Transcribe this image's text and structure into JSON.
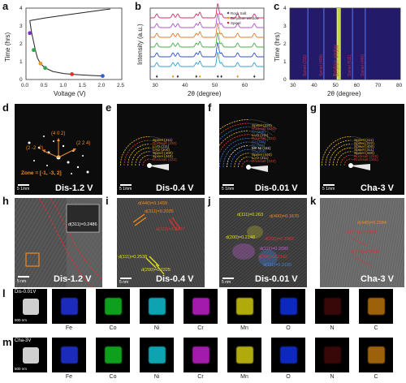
{
  "panels": {
    "a": {
      "label": "a"
    },
    "b": {
      "label": "b"
    },
    "c": {
      "label": "c"
    },
    "d": {
      "label": "d",
      "caption": "Dis-1.2 V",
      "zone": "Zone = [-1, -3, 2]",
      "spots": [
        "(4 0 2)",
        "(2 -2 -2)",
        "(2 2 4)"
      ],
      "scale": "5 1/nm"
    },
    "e": {
      "label": "e",
      "caption": "Dis-0.4 V",
      "scale": "5 1/nm",
      "rings": [
        [
          "Rocksalt (222)",
          "#e8402a"
        ],
        [
          "Spinel (440)",
          "#f0c020"
        ],
        [
          "Spinel (400)",
          "#f0c020"
        ],
        [
          "Li₂O (200)",
          "#f0c020"
        ],
        [
          "Li₂O (111)",
          "#f0c020"
        ],
        [
          "Rocksalt (220)",
          "#e8402a"
        ],
        [
          "Spinel (311)",
          "#f0c020"
        ]
      ]
    },
    "f": {
      "label": "f",
      "caption": "Dis-0.01 V",
      "scale": "5 1/nm",
      "rings": [
        [
          "Rocksalt (222)",
          "#e8402a"
        ],
        [
          "Li₂O (311)",
          "#f0c020"
        ],
        [
          "Spinel (440)",
          "#f0c020"
        ],
        [
          "Cu (200)",
          "#3a7bd5"
        ],
        [
          "Mn Ni (111)",
          "#f0f0f0"
        ],
        [
          "Cr (111)",
          "#3a7bd5"
        ],
        [
          "Co (111)",
          "#3a7bd5"
        ],
        [
          "Rocksalt (222)",
          "#e8402a"
        ],
        [
          "Li₂O (111)",
          "#f0c020"
        ],
        [
          "Cr (200)",
          "#3a7bd5"
        ],
        [
          "Rocksalt (220)",
          "#e8402a"
        ],
        [
          "Spinel (220)",
          "#f0c020"
        ]
      ]
    },
    "g": {
      "label": "g",
      "caption": "Cha-3 V",
      "scale": "5 1/nm",
      "rings": [
        [
          "Rocksalt (331)",
          "#e8402a"
        ],
        [
          "Rocksalt (222)",
          "#e8402a"
        ],
        [
          "Spinel (440)",
          "#f0c020"
        ],
        [
          "Spinel (311)",
          "#f0c020"
        ],
        [
          "Spinel (400)",
          "#f0c020"
        ],
        [
          "Spinel (222)",
          "#f0c020"
        ],
        [
          "Spinel (111)",
          "#f0c020"
        ]
      ]
    },
    "h": {
      "label": "h",
      "caption": "Dis-1.2 V",
      "dspacing": "d(311)=0.2486",
      "scale": "5 nm"
    },
    "i": {
      "label": "i",
      "caption": "Dis-0.4 V",
      "scale": "5 nm",
      "annots": [
        "d(440)=0.1459",
        "d(311)=0.2035",
        "d(311)=0.2467",
        "d(111)=0.2538",
        "d(200)=0.2325"
      ]
    },
    "j": {
      "label": "j",
      "caption": "Dis-0.01 V",
      "scale": "5 nm",
      "annots": [
        "d(111)=0.263",
        "d(400)=0.1670",
        "d(200)=0.2148",
        "d(200)=0.2083",
        "d(111)=0.2090",
        "d(200)=0.2142",
        "d(111)=0.2165"
      ]
    },
    "k": {
      "label": "k",
      "caption": "Cha-3 V",
      "scale": "5 nm",
      "annots": [
        "d(440)=0.2084",
        "d(311)=0.2529",
        "d(111)=0.2548"
      ]
    },
    "l": {
      "label": "l",
      "title": "Dis-0.01V",
      "scale": "500 nm"
    },
    "m": {
      "label": "m",
      "title": "Cha-3V",
      "scale": "500 nm"
    }
  },
  "eds_elements": [
    {
      "name": "Fe",
      "color": "#2233dd"
    },
    {
      "name": "Co",
      "color": "#11bb22"
    },
    {
      "name": "Ni",
      "color": "#11c0d0"
    },
    {
      "name": "Cr",
      "color": "#c020c8"
    },
    {
      "name": "Mn",
      "color": "#d0c810"
    },
    {
      "name": "O",
      "color": "#1030e0"
    },
    {
      "name": "N",
      "color": "#a01818"
    },
    {
      "name": "C",
      "color": "#e08a10"
    }
  ],
  "chart_data": [
    {
      "panel": "a",
      "type": "line",
      "xlabel": "Voltage (V)",
      "ylabel": "Time (hrs)",
      "xlim": [
        0,
        2.5
      ],
      "ylim": [
        0,
        4
      ],
      "xticks": [
        "0.0",
        "0.5",
        "1.0",
        "1.5",
        "2.0",
        "2.5"
      ],
      "yticks": [
        "0",
        "1",
        "2",
        "3",
        "4"
      ],
      "series": [
        {
          "x": [
            0.1,
            0.12,
            0.15,
            0.2,
            0.25,
            0.3,
            0.35,
            0.4,
            0.5,
            0.7,
            1.0,
            1.3,
            1.6,
            2.0
          ],
          "y": [
            3.3,
            3.0,
            2.6,
            2.1,
            1.6,
            1.2,
            1.0,
            0.85,
            0.65,
            0.45,
            0.33,
            0.28,
            0.24,
            0.2
          ]
        },
        {
          "x": [
            0.1,
            0.5,
            1.0,
            1.5,
            2.0,
            2.2
          ],
          "y": [
            3.3,
            3.45,
            3.6,
            3.75,
            3.9,
            3.95
          ]
        }
      ],
      "markers": [
        {
          "x": 0.1,
          "y": 2.6,
          "color": "#7b2fbe"
        },
        {
          "x": 0.2,
          "y": 1.65,
          "color": "#2fa84f"
        },
        {
          "x": 0.38,
          "y": 0.9,
          "color": "#e69a20"
        },
        {
          "x": 0.5,
          "y": 0.65,
          "color": "#2fa84f"
        },
        {
          "x": 1.2,
          "y": 0.3,
          "color": "#e03030"
        },
        {
          "x": 2.0,
          "y": 0.2,
          "color": "#2f5fd0"
        }
      ]
    },
    {
      "panel": "b",
      "type": "line",
      "xlabel": "2θ (degree)",
      "ylabel": "Intensity (a.u.)",
      "xlim": [
        28,
        66
      ],
      "xticks": [
        "30",
        "40",
        "50",
        "60"
      ],
      "legend": [
        "Rock Salt",
        "Beryllium window",
        "Spinel"
      ],
      "legend_colors": [
        "#555555",
        "#e69a20",
        "#c03030"
      ],
      "series_colors": [
        "#d0306a",
        "#b050d0",
        "#e07830",
        "#40b040",
        "#3050d0",
        "#30a0d0"
      ],
      "peaks": [
        30.2,
        35.6,
        37.2,
        43.4,
        44.6,
        50.6,
        51.8,
        57.2,
        62.8
      ]
    },
    {
      "panel": "c",
      "type": "heatmap",
      "xlabel": "2θ (degree)",
      "ylabel": "Time (hrs)",
      "xlim": [
        28,
        80
      ],
      "ylim": [
        0,
        4
      ],
      "xticks": [
        "30",
        "40",
        "50",
        "60",
        "70",
        "80"
      ],
      "yticks": [
        "0",
        "1",
        "2",
        "3",
        "4"
      ],
      "bands": [
        {
          "x": 36.5,
          "label": "Spinel (311)"
        },
        {
          "x": 44.0,
          "label": "Spinel (400)"
        },
        {
          "x": 50.5,
          "label": "Beryllium window"
        },
        {
          "x": 51.5,
          "label": "Beryllium window"
        },
        {
          "x": 57.5,
          "label": "Spinel (511)"
        },
        {
          "x": 63.5,
          "label": "Spinel (440)"
        }
      ]
    }
  ]
}
